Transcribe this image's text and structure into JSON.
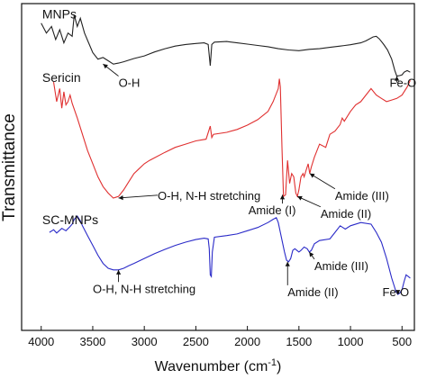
{
  "chart_data": {
    "type": "line",
    "xlabel": "Wavenumber (cm",
    "xlabel_sup": "-1",
    "xlabel_end": ")",
    "ylabel": "Transmittance",
    "xlim": [
      4000,
      400
    ],
    "x_reversed": true,
    "x_ticks": [
      4000,
      3500,
      3000,
      2500,
      2000,
      1500,
      1000,
      500
    ],
    "y_ticks_shown": false,
    "grid": false,
    "legend": "none",
    "series": [
      {
        "name": "MNPs",
        "color": "#222222",
        "points": [
          [
            4000,
            0.94
          ],
          [
            3950,
            0.91
          ],
          [
            3900,
            0.93
          ],
          [
            3860,
            0.89
          ],
          [
            3820,
            0.92
          ],
          [
            3780,
            0.88
          ],
          [
            3740,
            0.91
          ],
          [
            3700,
            0.9
          ],
          [
            3680,
            0.965
          ],
          [
            3650,
            0.93
          ],
          [
            3620,
            0.955
          ],
          [
            3580,
            0.91
          ],
          [
            3540,
            0.88
          ],
          [
            3500,
            0.85
          ],
          [
            3450,
            0.83
          ],
          [
            3400,
            0.835
          ],
          [
            3350,
            0.825
          ],
          [
            3300,
            0.815
          ],
          [
            3250,
            0.818
          ],
          [
            3200,
            0.822
          ],
          [
            3100,
            0.832
          ],
          [
            3000,
            0.84
          ],
          [
            2900,
            0.852
          ],
          [
            2800,
            0.862
          ],
          [
            2700,
            0.87
          ],
          [
            2600,
            0.875
          ],
          [
            2500,
            0.878
          ],
          [
            2420,
            0.88
          ],
          [
            2380,
            0.875
          ],
          [
            2360,
            0.81
          ],
          [
            2345,
            0.875
          ],
          [
            2320,
            0.882
          ],
          [
            2200,
            0.884
          ],
          [
            2100,
            0.88
          ],
          [
            2000,
            0.876
          ],
          [
            1900,
            0.872
          ],
          [
            1800,
            0.868
          ],
          [
            1700,
            0.862
          ],
          [
            1600,
            0.858
          ],
          [
            1500,
            0.856
          ],
          [
            1400,
            0.86
          ],
          [
            1300,
            0.862
          ],
          [
            1200,
            0.866
          ],
          [
            1100,
            0.87
          ],
          [
            1000,
            0.874
          ],
          [
            900,
            0.88
          ],
          [
            850,
            0.886
          ],
          [
            780,
            0.898
          ],
          [
            750,
            0.9
          ],
          [
            720,
            0.892
          ],
          [
            680,
            0.876
          ],
          [
            640,
            0.858
          ],
          [
            600,
            0.83
          ],
          [
            570,
            0.795
          ],
          [
            550,
            0.778
          ],
          [
            520,
            0.78
          ],
          [
            500,
            0.782
          ],
          [
            480,
            0.79
          ],
          [
            450,
            0.795
          ],
          [
            420,
            0.79
          ]
        ]
      },
      {
        "name": "Sericin",
        "color": "#e03030",
        "points": [
          [
            3880,
            0.76
          ],
          [
            3850,
            0.7
          ],
          [
            3820,
            0.74
          ],
          [
            3800,
            0.68
          ],
          [
            3780,
            0.73
          ],
          [
            3760,
            0.69
          ],
          [
            3740,
            0.7
          ],
          [
            3720,
            0.72
          ],
          [
            3700,
            0.695
          ],
          [
            3650,
            0.65
          ],
          [
            3600,
            0.6
          ],
          [
            3550,
            0.55
          ],
          [
            3500,
            0.51
          ],
          [
            3450,
            0.47
          ],
          [
            3400,
            0.44
          ],
          [
            3350,
            0.42
          ],
          [
            3300,
            0.405
          ],
          [
            3250,
            0.41
          ],
          [
            3200,
            0.43
          ],
          [
            3150,
            0.455
          ],
          [
            3100,
            0.48
          ],
          [
            3050,
            0.495
          ],
          [
            3000,
            0.51
          ],
          [
            2950,
            0.52
          ],
          [
            2900,
            0.528
          ],
          [
            2800,
            0.545
          ],
          [
            2700,
            0.56
          ],
          [
            2600,
            0.57
          ],
          [
            2500,
            0.58
          ],
          [
            2400,
            0.585
          ],
          [
            2360,
            0.625
          ],
          [
            2345,
            0.59
          ],
          [
            2330,
            0.6
          ],
          [
            2200,
            0.606
          ],
          [
            2100,
            0.615
          ],
          [
            2000,
            0.628
          ],
          [
            1900,
            0.645
          ],
          [
            1800,
            0.67
          ],
          [
            1750,
            0.7
          ],
          [
            1700,
            0.74
          ],
          [
            1690,
            0.77
          ],
          [
            1680,
            0.745
          ],
          [
            1665,
            0.56
          ],
          [
            1650,
            0.41
          ],
          [
            1630,
            0.415
          ],
          [
            1610,
            0.52
          ],
          [
            1590,
            0.45
          ],
          [
            1570,
            0.48
          ],
          [
            1550,
            0.47
          ],
          [
            1530,
            0.42
          ],
          [
            1515,
            0.41
          ],
          [
            1500,
            0.43
          ],
          [
            1480,
            0.47
          ],
          [
            1460,
            0.48
          ],
          [
            1450,
            0.47
          ],
          [
            1430,
            0.49
          ],
          [
            1410,
            0.51
          ],
          [
            1395,
            0.48
          ],
          [
            1380,
            0.5
          ],
          [
            1350,
            0.53
          ],
          [
            1300,
            0.57
          ],
          [
            1240,
            0.56
          ],
          [
            1200,
            0.6
          ],
          [
            1150,
            0.61
          ],
          [
            1100,
            0.63
          ],
          [
            1080,
            0.65
          ],
          [
            1060,
            0.64
          ],
          [
            1000,
            0.67
          ],
          [
            950,
            0.69
          ],
          [
            900,
            0.7
          ],
          [
            850,
            0.72
          ],
          [
            800,
            0.74
          ],
          [
            750,
            0.72
          ],
          [
            700,
            0.71
          ],
          [
            650,
            0.7
          ],
          [
            600,
            0.705
          ],
          [
            550,
            0.71
          ],
          [
            500,
            0.72
          ],
          [
            450,
            0.745
          ],
          [
            420,
            0.765
          ]
        ]
      },
      {
        "name": "SC-MNPs",
        "color": "#2a2ac8",
        "points": [
          [
            3920,
            0.3
          ],
          [
            3880,
            0.308
          ],
          [
            3850,
            0.298
          ],
          [
            3800,
            0.312
          ],
          [
            3760,
            0.305
          ],
          [
            3720,
            0.318
          ],
          [
            3700,
            0.325
          ],
          [
            3680,
            0.34
          ],
          [
            3650,
            0.35
          ],
          [
            3620,
            0.335
          ],
          [
            3600,
            0.32
          ],
          [
            3550,
            0.29
          ],
          [
            3500,
            0.26
          ],
          [
            3450,
            0.23
          ],
          [
            3400,
            0.205
          ],
          [
            3350,
            0.19
          ],
          [
            3300,
            0.185
          ],
          [
            3250,
            0.185
          ],
          [
            3200,
            0.19
          ],
          [
            3150,
            0.198
          ],
          [
            3100,
            0.205
          ],
          [
            3000,
            0.22
          ],
          [
            2900,
            0.235
          ],
          [
            2800,
            0.248
          ],
          [
            2700,
            0.26
          ],
          [
            2600,
            0.27
          ],
          [
            2500,
            0.278
          ],
          [
            2420,
            0.282
          ],
          [
            2380,
            0.28
          ],
          [
            2370,
            0.25
          ],
          [
            2360,
            0.17
          ],
          [
            2350,
            0.165
          ],
          [
            2340,
            0.24
          ],
          [
            2320,
            0.285
          ],
          [
            2200,
            0.29
          ],
          [
            2100,
            0.295
          ],
          [
            2000,
            0.305
          ],
          [
            1900,
            0.315
          ],
          [
            1800,
            0.33
          ],
          [
            1750,
            0.34
          ],
          [
            1720,
            0.345
          ],
          [
            1700,
            0.33
          ],
          [
            1680,
            0.3
          ],
          [
            1660,
            0.27
          ],
          [
            1640,
            0.24
          ],
          [
            1620,
            0.215
          ],
          [
            1600,
            0.21
          ],
          [
            1580,
            0.22
          ],
          [
            1560,
            0.245
          ],
          [
            1540,
            0.25
          ],
          [
            1520,
            0.245
          ],
          [
            1500,
            0.24
          ],
          [
            1480,
            0.245
          ],
          [
            1450,
            0.255
          ],
          [
            1420,
            0.25
          ],
          [
            1400,
            0.24
          ],
          [
            1380,
            0.245
          ],
          [
            1350,
            0.265
          ],
          [
            1300,
            0.275
          ],
          [
            1200,
            0.28
          ],
          [
            1150,
            0.3
          ],
          [
            1100,
            0.32
          ],
          [
            1050,
            0.31
          ],
          [
            1000,
            0.32
          ],
          [
            900,
            0.33
          ],
          [
            800,
            0.325
          ],
          [
            750,
            0.3
          ],
          [
            700,
            0.27
          ],
          [
            650,
            0.22
          ],
          [
            600,
            0.16
          ],
          [
            560,
            0.12
          ],
          [
            540,
            0.11
          ],
          [
            520,
            0.115
          ],
          [
            500,
            0.125
          ],
          [
            480,
            0.15
          ],
          [
            460,
            0.17
          ],
          [
            440,
            0.165
          ],
          [
            420,
            0.16
          ]
        ]
      }
    ],
    "series_labels": [
      {
        "text": "MNPs",
        "x": 3990,
        "y": 0.955
      },
      {
        "text": "Sericin",
        "x": 3990,
        "y": 0.76
      },
      {
        "text": "SC-MNPs",
        "x": 3990,
        "y": 0.325
      }
    ],
    "annotations": [
      {
        "text": "O-H",
        "tx": 3250,
        "ty": 0.745,
        "ax": 3400,
        "ay": 0.815
      },
      {
        "text": "Fe-O",
        "tx": 620,
        "ty": 0.745,
        "ax": 550,
        "ay": 0.778
      },
      {
        "text": "O-H, N-H stretching",
        "tx": 2870,
        "ty": 0.4,
        "ax": 3250,
        "ay": 0.405
      },
      {
        "text": "Amide (III)",
        "tx": 1150,
        "ty": 0.4,
        "ax": 1395,
        "ay": 0.48
      },
      {
        "text": "Amide (I)",
        "tx": 1990,
        "ty": 0.355,
        "ax": 1660,
        "ay": 0.415
      },
      {
        "text": "Amide (II)",
        "tx": 1290,
        "ty": 0.345,
        "ax": 1515,
        "ay": 0.41
      },
      {
        "text": "O-H, N-H stretching",
        "tx": 3500,
        "ty": 0.115,
        "ax": 3250,
        "ay": 0.185
      },
      {
        "text": "Amide (III)",
        "tx": 1350,
        "ty": 0.185,
        "ax": 1400,
        "ay": 0.24
      },
      {
        "text": "Amide (II)",
        "tx": 1610,
        "ty": 0.105,
        "ax": 1610,
        "ay": 0.21
      },
      {
        "text": "Fe-O",
        "tx": 690,
        "ty": 0.105,
        "ax": 540,
        "ay": 0.11
      }
    ]
  }
}
